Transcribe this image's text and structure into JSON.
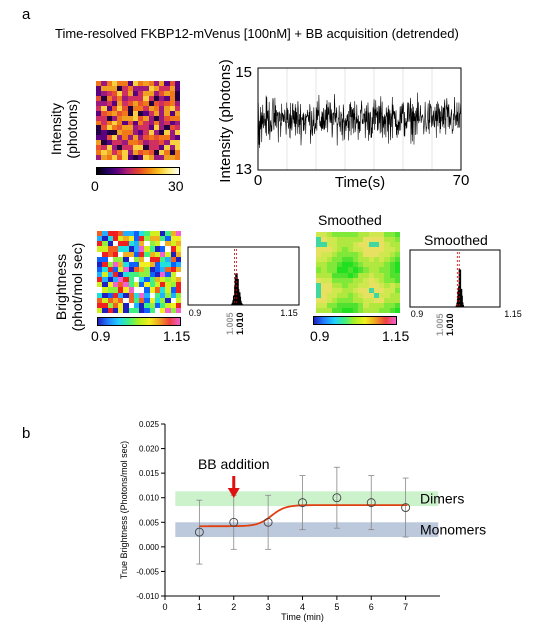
{
  "panel_a": {
    "letter": "a",
    "title": "Time-resolved FKBP12-mVenus [100nM] + BB acquisition (detrended)",
    "intensity_ylabel_line1": "Intensity",
    "intensity_ylabel_line2": "(photons)",
    "intensity_colorbar_ticks": [
      "0",
      "30"
    ],
    "brightness_ylabel_line1": "Brightness",
    "brightness_ylabel_line2": "(phot/mol sec)",
    "brightness_colorbar_ticks": [
      "0.9",
      "1.15"
    ],
    "smoothed_label": "Smoothed",
    "smoothed_hist_label": "Smoothed",
    "colors": {
      "trace": "#000000",
      "marker_line": "#cc0000",
      "marker_gray": "#888888"
    }
  },
  "panel_b": {
    "letter": "b",
    "annotation": "BB addition",
    "band_dimers_label": "Dimers",
    "band_monomers_label": "Monomers",
    "colors": {
      "band_dimers": "#ccf2cc",
      "band_monomers": "#bcc8dc",
      "fit": "#e04010",
      "arrow": "#e01010"
    }
  },
  "chart_data": [
    {
      "id": "intensity-trace",
      "type": "line",
      "xlabel": "Time(s)",
      "ylabel": "Intensity (photons)",
      "xlim": [
        0,
        70
      ],
      "ylim": [
        13,
        15
      ],
      "x_tick_labels": [
        "0",
        "70"
      ],
      "y_tick_labels": [
        "13",
        "15"
      ],
      "mean": 14.0,
      "spread": 0.25
    },
    {
      "id": "brightness-histogram",
      "type": "bar",
      "xlim": [
        0.9,
        1.15
      ],
      "x_tick_labels": [
        "0.9",
        "1.15"
      ],
      "markers": [
        1.005,
        1.01
      ],
      "marker_labels": [
        "1.005",
        "1.010"
      ]
    },
    {
      "id": "smoothed-brightness-histogram",
      "type": "bar",
      "xlim": [
        0.9,
        1.15
      ],
      "x_tick_labels": [
        "0.9",
        "1.15"
      ],
      "markers": [
        1.005,
        1.01
      ],
      "marker_labels": [
        "1.005",
        "1.010"
      ]
    },
    {
      "id": "true-brightness",
      "type": "scatter",
      "xlabel": "Time (min)",
      "ylabel": "True Brightness (Photons/mol sec)",
      "xlim": [
        0,
        8
      ],
      "ylim": [
        -0.01,
        0.025
      ],
      "x_ticks": [
        0,
        1,
        2,
        3,
        4,
        5,
        6,
        7
      ],
      "y_ticks": [
        -0.01,
        -0.005,
        0.0,
        0.005,
        0.01,
        0.015,
        0.02,
        0.025
      ],
      "y_tick_labels": [
        "-0.010",
        "-0.005",
        "0.000",
        "0.005",
        "0.010",
        "0.015",
        "0.020",
        "0.025"
      ],
      "x": [
        1,
        2,
        3,
        4,
        5,
        6,
        7
      ],
      "y": [
        0.003,
        0.005,
        0.005,
        0.009,
        0.01,
        0.009,
        0.008
      ],
      "err": [
        0.0065,
        0.0055,
        0.0055,
        0.0055,
        0.0062,
        0.0055,
        0.006
      ],
      "bands": [
        {
          "name": "Dimers",
          "range": [
            0.0083,
            0.0113
          ]
        },
        {
          "name": "Monomers",
          "range": [
            0.002,
            0.005
          ]
        }
      ],
      "annotation_x": 2,
      "fit": {
        "low": 0.0042,
        "high": 0.0085,
        "midpoint": 3.1,
        "steepness": 5
      }
    }
  ]
}
